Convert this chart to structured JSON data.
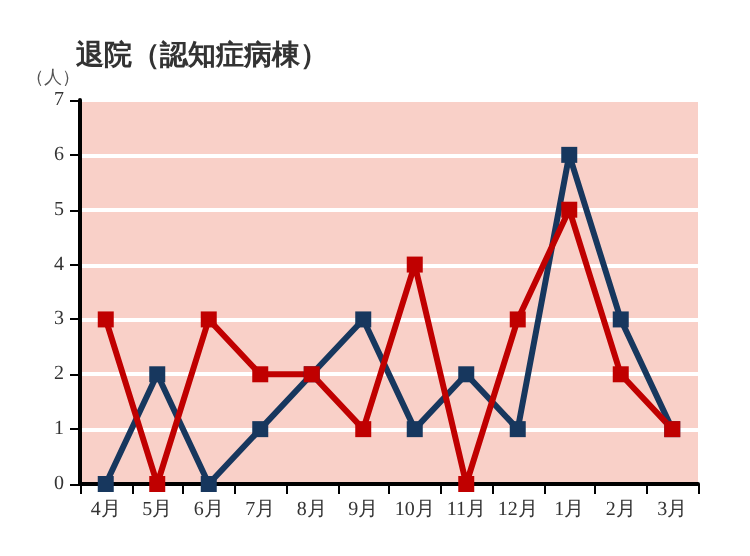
{
  "chart_data": {
    "type": "line",
    "title": "退院（認知症病棟）",
    "ylabel": "（人）",
    "categories": [
      "4月",
      "5月",
      "6月",
      "7月",
      "8月",
      "9月",
      "10月",
      "11月",
      "12月",
      "1月",
      "2月",
      "3月"
    ],
    "series": [
      {
        "color": "#17375e",
        "values": [
          0,
          2,
          0,
          1,
          2,
          3,
          1,
          2,
          1,
          6,
          3,
          1
        ]
      },
      {
        "color": "#c00000",
        "values": [
          3,
          0,
          3,
          2,
          2,
          1,
          4,
          0,
          3,
          5,
          2,
          1
        ]
      }
    ],
    "ylim": [
      0,
      7
    ],
    "yticks": [
      0,
      1,
      2,
      3,
      4,
      5,
      6,
      7
    ],
    "grid": "y",
    "marker": "square",
    "line_style": "solid"
  }
}
